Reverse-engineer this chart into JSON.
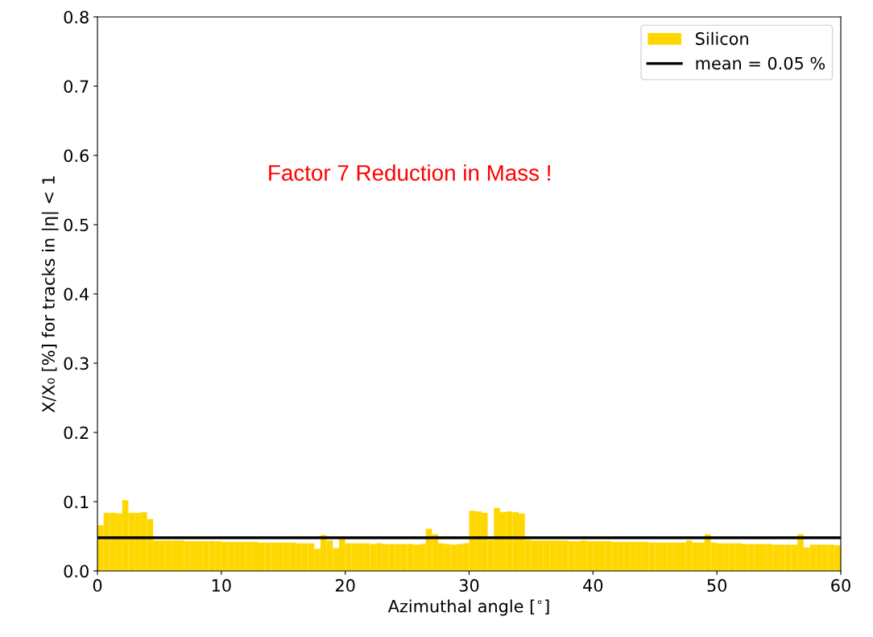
{
  "chart_data": {
    "type": "histogram",
    "xlabel": "Azimuthal angle [$^{∘}$]",
    "ylabel": "X/X₀ [%] for tracks in |η| < 1",
    "xlim": [
      0,
      60
    ],
    "xticks": [
      0,
      10,
      20,
      30,
      40,
      50,
      60
    ],
    "ylim": [
      0,
      0.8
    ],
    "yticks": [
      {
        "value": 0,
        "label": "0.0"
      },
      0.1,
      0.2,
      0.3,
      0.4,
      0.5,
      0.6,
      0.7,
      0.8
    ],
    "grid": false,
    "legend": "top right",
    "bins": [
      0,
      0.5,
      1,
      1.5,
      2,
      2.5,
      3,
      3.5,
      4,
      4.5,
      5,
      5.5,
      6,
      6.5,
      7,
      7.5,
      8,
      8.5,
      9,
      9.5,
      10,
      10.5,
      11,
      11.5,
      12,
      12.5,
      13,
      13.5,
      14,
      14.5,
      15,
      15.5,
      16,
      16.5,
      17,
      17.5,
      18,
      18.5,
      19,
      19.5,
      20,
      20.5,
      21,
      21.5,
      22,
      22.5,
      23,
      23.5,
      24,
      24.5,
      25,
      25.5,
      26,
      26.5,
      27,
      27.5,
      28,
      28.5,
      29,
      29.5,
      30,
      30.5,
      31,
      31.5,
      32,
      32.5,
      33,
      33.5,
      34,
      34.5,
      35,
      35.5,
      36,
      36.5,
      37,
      37.5,
      38,
      38.5,
      39,
      39.5,
      40,
      40.5,
      41,
      41.5,
      42,
      42.5,
      43,
      43.5,
      44,
      44.5,
      45,
      45.5,
      46,
      46.5,
      47,
      47.5,
      48,
      48.5,
      49,
      49.5,
      50,
      50.5,
      51,
      51.5,
      52,
      52.5,
      53,
      53.5,
      54,
      54.5,
      55,
      55.5,
      56,
      56.5,
      57,
      57.5,
      58,
      58.5,
      59,
      59.5,
      60
    ],
    "series": [
      {
        "name": "Silicon",
        "color": "#ffd700",
        "values": [
          0.066,
          0.084,
          0.084,
          0.083,
          0.102,
          0.084,
          0.084,
          0.085,
          0.075,
          0.044,
          0.044,
          0.044,
          0.044,
          0.044,
          0.043,
          0.043,
          0.043,
          0.043,
          0.043,
          0.043,
          0.042,
          0.042,
          0.042,
          0.042,
          0.042,
          0.042,
          0.041,
          0.041,
          0.041,
          0.041,
          0.041,
          0.041,
          0.04,
          0.04,
          0.04,
          0.032,
          0.052,
          0.044,
          0.033,
          0.048,
          0.04,
          0.04,
          0.04,
          0.04,
          0.039,
          0.04,
          0.039,
          0.039,
          0.039,
          0.039,
          0.039,
          0.038,
          0.039,
          0.061,
          0.053,
          0.04,
          0.039,
          0.038,
          0.039,
          0.04,
          0.087,
          0.086,
          0.084,
          0.045,
          0.091,
          0.085,
          0.086,
          0.085,
          0.083,
          0.045,
          0.044,
          0.044,
          0.044,
          0.044,
          0.044,
          0.044,
          0.043,
          0.043,
          0.044,
          0.043,
          0.043,
          0.043,
          0.043,
          0.042,
          0.042,
          0.042,
          0.042,
          0.042,
          0.042,
          0.041,
          0.041,
          0.041,
          0.041,
          0.041,
          0.041,
          0.044,
          0.041,
          0.041,
          0.053,
          0.041,
          0.04,
          0.04,
          0.04,
          0.04,
          0.039,
          0.039,
          0.039,
          0.039,
          0.039,
          0.038,
          0.038,
          0.038,
          0.038,
          0.053,
          0.034,
          0.038,
          0.038,
          0.038,
          0.038,
          0.037
        ]
      }
    ],
    "ref_lines": [
      {
        "axis": "y",
        "value": 0.048,
        "label": "mean = 0.05 %",
        "color": "#000000"
      }
    ],
    "annotations": [
      "Factor 7 Reduction in Mass !"
    ]
  }
}
